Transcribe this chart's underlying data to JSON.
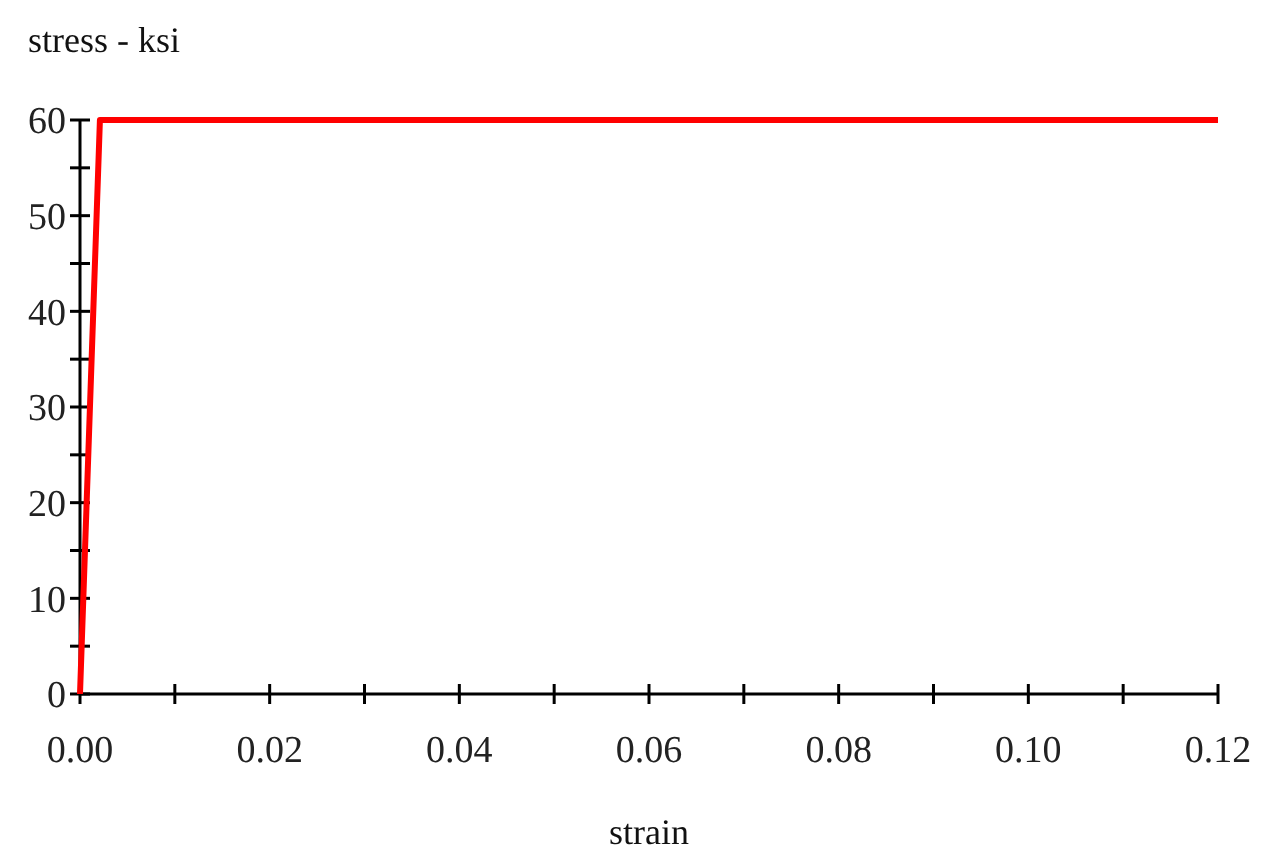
{
  "chart_data": {
    "type": "line",
    "xlabel": "strain",
    "ylabel": "stress - ksi",
    "x": [
      0,
      0.0021,
      0.12
    ],
    "series": [
      {
        "color": "#ff0000",
        "values": [
          0,
          60,
          60
        ]
      }
    ],
    "xlim": [
      0,
      0.12
    ],
    "xticks": [
      {
        "value": 0,
        "label": "0.00"
      },
      {
        "value": 0.01,
        "label": null
      },
      {
        "value": 0.02,
        "label": "0.02"
      },
      {
        "value": 0.03,
        "label": null
      },
      {
        "value": 0.04,
        "label": "0.04"
      },
      {
        "value": 0.05,
        "label": null
      },
      {
        "value": 0.06,
        "label": "0.06"
      },
      {
        "value": 0.07,
        "label": null
      },
      {
        "value": 0.08,
        "label": "0.08"
      },
      {
        "value": 0.09,
        "label": null
      },
      {
        "value": 0.1,
        "label": "0.10"
      },
      {
        "value": 0.11,
        "label": null
      },
      {
        "value": 0.12,
        "label": "0.12"
      }
    ],
    "ylim": [
      0,
      60
    ],
    "yticks": [
      0,
      {
        "value": 5,
        "label": null
      },
      10,
      {
        "value": 15,
        "label": null
      },
      20,
      {
        "value": 25,
        "label": null
      },
      30,
      {
        "value": 35,
        "label": null
      },
      40,
      {
        "value": 45,
        "label": null
      },
      50,
      {
        "value": 55,
        "label": null
      },
      60
    ],
    "grid": false,
    "marker": "none",
    "line_style": "solid"
  }
}
